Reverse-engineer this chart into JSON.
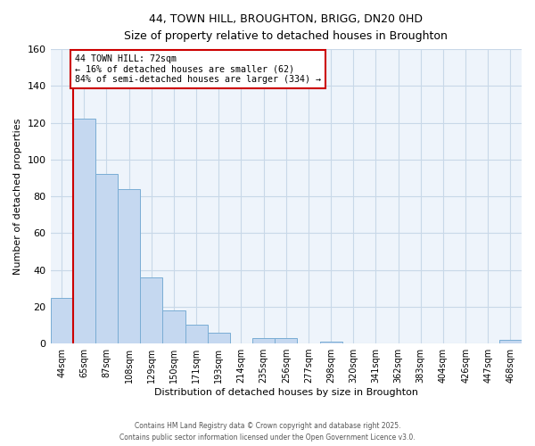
{
  "title": "44, TOWN HILL, BROUGHTON, BRIGG, DN20 0HD",
  "subtitle": "Size of property relative to detached houses in Broughton",
  "xlabel": "Distribution of detached houses by size in Broughton",
  "ylabel": "Number of detached properties",
  "bin_labels": [
    "44sqm",
    "65sqm",
    "87sqm",
    "108sqm",
    "129sqm",
    "150sqm",
    "171sqm",
    "193sqm",
    "214sqm",
    "235sqm",
    "256sqm",
    "277sqm",
    "298sqm",
    "320sqm",
    "341sqm",
    "362sqm",
    "383sqm",
    "404sqm",
    "426sqm",
    "447sqm",
    "468sqm"
  ],
  "bar_values": [
    25,
    122,
    92,
    84,
    36,
    18,
    10,
    6,
    0,
    3,
    3,
    0,
    1,
    0,
    0,
    0,
    0,
    0,
    0,
    0,
    2
  ],
  "bar_color": "#c5d8f0",
  "bar_edge_color": "#7aadd4",
  "ref_line_color": "#cc0000",
  "ylim": [
    0,
    160
  ],
  "yticks": [
    0,
    20,
    40,
    60,
    80,
    100,
    120,
    140,
    160
  ],
  "annotation_title": "44 TOWN HILL: 72sqm",
  "annotation_line1": "← 16% of detached houses are smaller (62)",
  "annotation_line2": "84% of semi-detached houses are larger (334) →",
  "annotation_box_color": "#ffffff",
  "annotation_box_edge": "#cc0000",
  "footer1": "Contains HM Land Registry data © Crown copyright and database right 2025.",
  "footer2": "Contains public sector information licensed under the Open Government Licence v3.0.",
  "bg_color": "#ffffff",
  "grid_color": "#c8d8e8",
  "plot_bg_color": "#eef4fb"
}
